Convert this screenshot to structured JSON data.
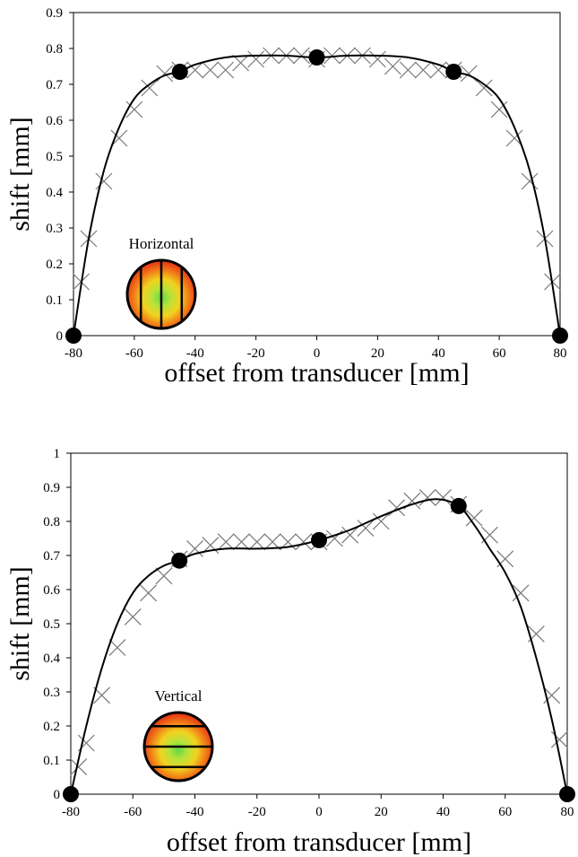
{
  "chart_data": [
    {
      "type": "line",
      "xlabel": "offset from transducer [mm]",
      "ylabel": "shift [mm]",
      "annotation": "Horizontal",
      "xlim": [
        -80,
        80
      ],
      "ylim": [
        0,
        0.9
      ],
      "xticks": [
        -80,
        -60,
        -40,
        -20,
        0,
        20,
        40,
        60,
        80
      ],
      "yticks": [
        0,
        0.1,
        0.2,
        0.3,
        0.4,
        0.5,
        0.6,
        0.7,
        0.8,
        0.9
      ],
      "series": [
        {
          "color": "#777777",
          "marker": "x",
          "x": [
            -77.5,
            -75,
            -70,
            -65,
            -60,
            -55,
            -50,
            -45,
            -40,
            -35,
            -30,
            -25,
            -20,
            -15,
            -10,
            -5,
            0,
            5,
            10,
            15,
            20,
            25,
            30,
            35,
            40,
            45,
            50,
            55,
            60,
            65,
            70,
            75,
            77.5
          ],
          "values": [
            0.15,
            0.27,
            0.43,
            0.55,
            0.63,
            0.69,
            0.73,
            0.74,
            0.74,
            0.74,
            0.74,
            0.76,
            0.77,
            0.78,
            0.78,
            0.78,
            0.77,
            0.78,
            0.78,
            0.78,
            0.77,
            0.75,
            0.74,
            0.74,
            0.74,
            0.74,
            0.73,
            0.69,
            0.63,
            0.55,
            0.43,
            0.27,
            0.15
          ]
        },
        {
          "color": "#000000",
          "marker": "line",
          "x": [
            -80,
            -75,
            -70,
            -65,
            -60,
            -55,
            -50,
            -45,
            -40,
            -30,
            -20,
            -10,
            0,
            10,
            20,
            30,
            40,
            45,
            50,
            55,
            60,
            65,
            70,
            75,
            80
          ],
          "values": [
            0,
            0.27,
            0.46,
            0.58,
            0.66,
            0.7,
            0.725,
            0.735,
            0.755,
            0.775,
            0.78,
            0.78,
            0.775,
            0.78,
            0.78,
            0.775,
            0.755,
            0.735,
            0.725,
            0.7,
            0.66,
            0.58,
            0.46,
            0.27,
            0
          ]
        },
        {
          "color": "#000000",
          "marker": "circle",
          "x": [
            -80,
            -45,
            0,
            45,
            80
          ],
          "values": [
            0,
            0.735,
            0.775,
            0.735,
            0
          ]
        }
      ]
    },
    {
      "type": "line",
      "xlabel": "offset from transducer [mm]",
      "ylabel": "shift [mm]",
      "annotation": "Vertical",
      "xlim": [
        -80,
        80
      ],
      "ylim": [
        0,
        1
      ],
      "xticks": [
        -80,
        -60,
        -40,
        -20,
        0,
        20,
        40,
        60,
        80
      ],
      "yticks": [
        0,
        0.1,
        0.2,
        0.3,
        0.4,
        0.5,
        0.6,
        0.7,
        0.8,
        0.9,
        1
      ],
      "series": [
        {
          "color": "#777777",
          "marker": "x",
          "x": [
            -77.5,
            -75,
            -70,
            -65,
            -60,
            -55,
            -50,
            -45,
            -40,
            -35,
            -30,
            -25,
            -20,
            -15,
            -10,
            -5,
            0,
            5,
            10,
            15,
            20,
            25,
            30,
            35,
            40,
            45,
            50,
            55,
            60,
            65,
            70,
            75,
            77.5
          ],
          "values": [
            0.08,
            0.15,
            0.29,
            0.43,
            0.52,
            0.59,
            0.64,
            0.69,
            0.72,
            0.73,
            0.74,
            0.74,
            0.74,
            0.74,
            0.74,
            0.74,
            0.74,
            0.75,
            0.76,
            0.78,
            0.8,
            0.84,
            0.86,
            0.87,
            0.87,
            0.85,
            0.81,
            0.76,
            0.69,
            0.59,
            0.47,
            0.29,
            0.16
          ]
        },
        {
          "color": "#000000",
          "marker": "line",
          "x": [
            -80,
            -75,
            -70,
            -65,
            -60,
            -55,
            -50,
            -45,
            -40,
            -30,
            -20,
            -10,
            0,
            10,
            20,
            30,
            38,
            45,
            50,
            55,
            60,
            65,
            70,
            75,
            80
          ],
          "values": [
            0,
            0.2,
            0.37,
            0.5,
            0.59,
            0.64,
            0.67,
            0.685,
            0.705,
            0.72,
            0.72,
            0.725,
            0.745,
            0.775,
            0.815,
            0.85,
            0.865,
            0.845,
            0.79,
            0.72,
            0.65,
            0.55,
            0.4,
            0.22,
            0
          ]
        },
        {
          "color": "#000000",
          "marker": "circle",
          "x": [
            -80,
            -45,
            0,
            45,
            80
          ],
          "values": [
            0,
            0.685,
            0.745,
            0.845,
            0
          ]
        }
      ]
    }
  ]
}
